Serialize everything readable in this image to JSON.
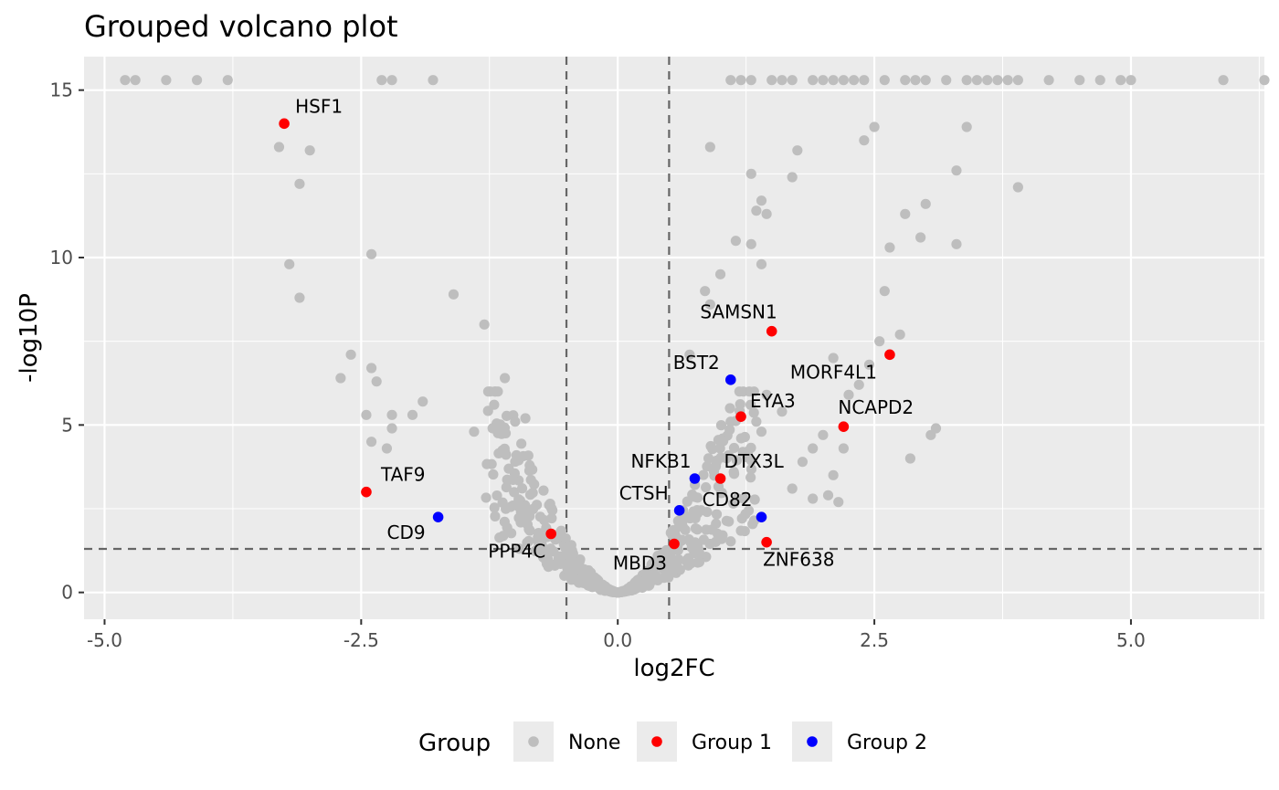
{
  "chart_data": {
    "type": "scatter",
    "title": "Grouped volcano plot",
    "xlabel": "log2FC",
    "ylabel": "-log10P",
    "xlim": [
      -5.2,
      6.3
    ],
    "ylim": [
      -0.8,
      16
    ],
    "x_ticks": [
      -5.0,
      -2.5,
      0.0,
      2.5,
      5.0
    ],
    "x_tick_labels": [
      "-5.0",
      "-2.5",
      "0.0",
      "2.5",
      "5.0"
    ],
    "y_ticks": [
      0,
      5,
      10,
      15
    ],
    "y_tick_labels": [
      "0",
      "5",
      "10",
      "15"
    ],
    "grid": true,
    "thresholds": {
      "x": [
        -0.5,
        0.5
      ],
      "y": 1.3
    },
    "colors": {
      "None": "#bebebe",
      "Group 1": "#ff0000",
      "Group 2": "#0000ff",
      "panel": "#ebebeb",
      "grid": "#ffffff"
    },
    "legend": {
      "title": "Group",
      "position": "bottom",
      "entries": [
        "None",
        "Group 1",
        "Group 2"
      ]
    },
    "series": [
      {
        "name": "None",
        "points": [
          [
            -4.8,
            15.3
          ],
          [
            -4.7,
            15.3
          ],
          [
            -4.4,
            15.3
          ],
          [
            -4.1,
            15.3
          ],
          [
            -3.8,
            15.3
          ],
          [
            -2.3,
            15.3
          ],
          [
            -2.2,
            15.3
          ],
          [
            -1.8,
            15.3
          ],
          [
            1.1,
            15.3
          ],
          [
            1.2,
            15.3
          ],
          [
            1.3,
            15.3
          ],
          [
            1.5,
            15.3
          ],
          [
            1.6,
            15.3
          ],
          [
            1.7,
            15.3
          ],
          [
            1.9,
            15.3
          ],
          [
            2.0,
            15.3
          ],
          [
            2.1,
            15.3
          ],
          [
            2.2,
            15.3
          ],
          [
            2.3,
            15.3
          ],
          [
            2.4,
            15.3
          ],
          [
            2.6,
            15.3
          ],
          [
            2.8,
            15.3
          ],
          [
            2.9,
            15.3
          ],
          [
            3.0,
            15.3
          ],
          [
            3.2,
            15.3
          ],
          [
            3.4,
            15.3
          ],
          [
            3.5,
            15.3
          ],
          [
            3.6,
            15.3
          ],
          [
            3.7,
            15.3
          ],
          [
            3.8,
            15.3
          ],
          [
            3.9,
            15.3
          ],
          [
            4.2,
            15.3
          ],
          [
            4.5,
            15.3
          ],
          [
            4.7,
            15.3
          ],
          [
            4.9,
            15.3
          ],
          [
            5.0,
            15.3
          ],
          [
            5.9,
            15.3
          ],
          [
            6.3,
            15.3
          ],
          [
            -3.3,
            13.3
          ],
          [
            -3.0,
            13.2
          ],
          [
            -3.1,
            12.2
          ],
          [
            -3.2,
            9.8
          ],
          [
            -3.1,
            8.8
          ],
          [
            -2.4,
            10.1
          ],
          [
            -2.6,
            7.1
          ],
          [
            -2.7,
            6.4
          ],
          [
            -2.4,
            6.7
          ],
          [
            -2.35,
            6.3
          ],
          [
            -2.45,
            5.3
          ],
          [
            -2.2,
            5.3
          ],
          [
            -1.9,
            5.7
          ],
          [
            -2.0,
            5.3
          ],
          [
            -2.2,
            4.9
          ],
          [
            -1.6,
            8.9
          ],
          [
            -1.3,
            8.0
          ],
          [
            -1.1,
            6.4
          ],
          [
            -0.9,
            5.2
          ],
          [
            -1.0,
            5.1
          ],
          [
            -2.4,
            4.5
          ],
          [
            -2.25,
            4.3
          ],
          [
            -1.4,
            4.8
          ],
          [
            -1.2,
            4.9
          ],
          [
            0.9,
            13.3
          ],
          [
            1.3,
            12.5
          ],
          [
            1.75,
            13.2
          ],
          [
            1.7,
            12.4
          ],
          [
            1.15,
            10.5
          ],
          [
            1.3,
            10.4
          ],
          [
            1.35,
            11.4
          ],
          [
            1.45,
            11.3
          ],
          [
            1.4,
            11.7
          ],
          [
            1.4,
            9.8
          ],
          [
            1.0,
            9.5
          ],
          [
            0.85,
            9.0
          ],
          [
            0.9,
            8.6
          ],
          [
            0.7,
            7.1
          ],
          [
            1.1,
            5.1
          ],
          [
            2.5,
            13.9
          ],
          [
            2.4,
            13.5
          ],
          [
            3.4,
            13.9
          ],
          [
            3.3,
            12.6
          ],
          [
            3.9,
            12.1
          ],
          [
            2.8,
            11.3
          ],
          [
            3.0,
            11.6
          ],
          [
            2.95,
            10.6
          ],
          [
            2.65,
            10.3
          ],
          [
            3.3,
            10.4
          ],
          [
            2.6,
            9.0
          ],
          [
            2.55,
            7.5
          ],
          [
            2.75,
            7.7
          ],
          [
            2.1,
            7.0
          ],
          [
            2.45,
            6.8
          ],
          [
            2.35,
            6.2
          ],
          [
            2.25,
            5.9
          ],
          [
            3.1,
            4.9
          ],
          [
            3.05,
            4.7
          ],
          [
            2.85,
            4.0
          ],
          [
            1.45,
            5.9
          ],
          [
            1.6,
            5.4
          ],
          [
            1.35,
            5.1
          ],
          [
            1.4,
            4.8
          ],
          [
            2.0,
            4.7
          ],
          [
            2.2,
            4.3
          ],
          [
            1.9,
            4.3
          ],
          [
            1.8,
            3.9
          ],
          [
            2.1,
            3.5
          ],
          [
            2.05,
            2.9
          ],
          [
            2.15,
            2.7
          ],
          [
            1.7,
            3.1
          ],
          [
            1.9,
            2.8
          ]
        ]
      },
      {
        "name": "Group 1",
        "points": [
          {
            "x": -3.25,
            "y": 14.0,
            "label": "HSF1"
          },
          {
            "x": -2.45,
            "y": 3.0,
            "label": "TAF9"
          },
          {
            "x": -0.65,
            "y": 1.75,
            "label": "PPP4C"
          },
          {
            "x": 1.5,
            "y": 7.8,
            "label": "SAMSN1"
          },
          {
            "x": 2.65,
            "y": 7.1,
            "label": "MORF4L1"
          },
          {
            "x": 1.2,
            "y": 5.25,
            "label": "EYA3"
          },
          {
            "x": 2.2,
            "y": 4.95,
            "label": "NCAPD2"
          },
          {
            "x": 1.0,
            "y": 3.4,
            "label": "DTX3L"
          },
          {
            "x": 0.55,
            "y": 1.45,
            "label": "MBD3"
          },
          {
            "x": 1.45,
            "y": 1.5,
            "label": "ZNF638"
          }
        ]
      },
      {
        "name": "Group 2",
        "points": [
          {
            "x": -1.75,
            "y": 2.25,
            "label": "CD9"
          },
          {
            "x": 1.1,
            "y": 6.35,
            "label": "BST2"
          },
          {
            "x": 0.75,
            "y": 3.4,
            "label": "NFKB1"
          },
          {
            "x": 0.6,
            "y": 2.45,
            "label": "CTSH"
          },
          {
            "x": 1.4,
            "y": 2.25,
            "label": "CD82"
          }
        ]
      }
    ]
  }
}
